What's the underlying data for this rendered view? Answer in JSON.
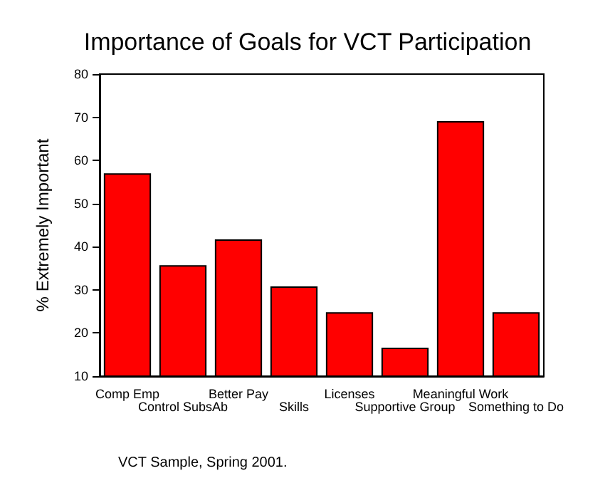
{
  "chart_data": {
    "type": "bar",
    "title": "Importance of Goals for VCT Participation",
    "ylabel": "% Extremely Important",
    "categories": [
      "Comp Emp",
      "Control SubsAb",
      "Better Pay",
      "Skills",
      "Licenses",
      "Supportive Group",
      "Meaningful Work",
      "Something to Do"
    ],
    "values": [
      57,
      35.7,
      41.7,
      30.8,
      24.8,
      16.6,
      69.1,
      24.8
    ],
    "color": "#ff0000",
    "ylim": [
      10,
      80
    ],
    "yticks": [
      10,
      20,
      30,
      40,
      50,
      60,
      70,
      80
    ],
    "grid": false,
    "annotations": [
      "VCT Sample, Spring 2001."
    ]
  }
}
